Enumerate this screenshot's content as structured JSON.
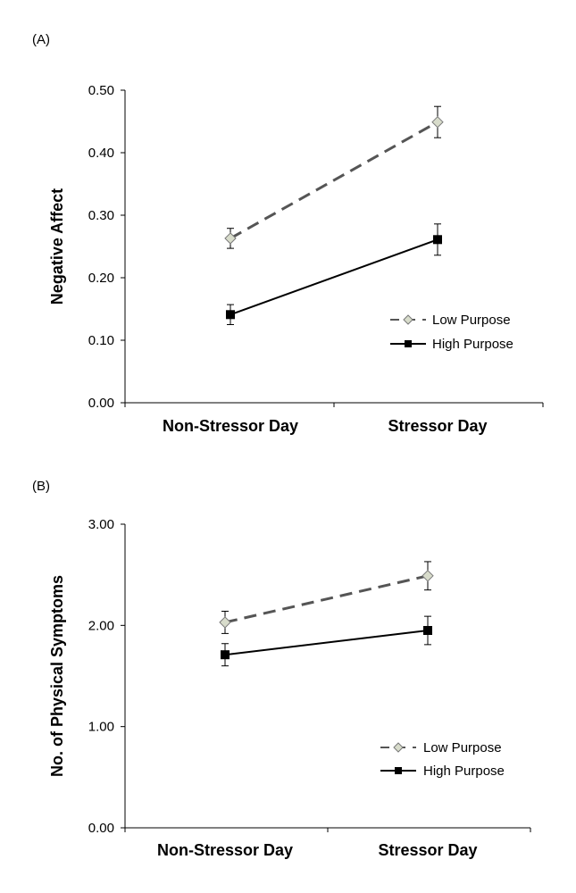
{
  "colors": {
    "low_purpose_line": "#555555",
    "low_purpose_marker_fill": "#d8dccb",
    "low_purpose_marker_stroke": "#777777",
    "high_purpose_line": "#000000",
    "axis": "#000000"
  },
  "chart_data": [
    {
      "panel_label": "(A)",
      "type": "line",
      "categories": [
        "Non-Stressor Day",
        "Stressor Day"
      ],
      "ylabel": "Negative Affect",
      "xlabel": "",
      "ylim": [
        0,
        0.5
      ],
      "yticks": [
        "0.00",
        "0.10",
        "0.20",
        "0.30",
        "0.40",
        "0.50"
      ],
      "ytick_values": [
        0,
        0.1,
        0.2,
        0.3,
        0.4,
        0.5
      ],
      "grid": false,
      "legend_position": "bottom-right",
      "series": [
        {
          "name": "Low Purpose",
          "values": [
            0.263,
            0.449
          ],
          "errors": [
            0.016,
            0.025
          ],
          "marker": "diamond",
          "line": "dashed"
        },
        {
          "name": "High Purpose",
          "values": [
            0.141,
            0.261
          ],
          "errors": [
            0.016,
            0.025
          ],
          "marker": "square",
          "line": "solid"
        }
      ]
    },
    {
      "panel_label": "(B)",
      "type": "line",
      "categories": [
        "Non-Stressor Day",
        "Stressor Day"
      ],
      "ylabel": "No. of Physical Symptoms",
      "xlabel": "",
      "ylim": [
        0,
        3
      ],
      "yticks": [
        "0.00",
        "1.00",
        "2.00",
        "3.00"
      ],
      "ytick_values": [
        0,
        1,
        2,
        3
      ],
      "grid": false,
      "legend_position": "bottom-right",
      "series": [
        {
          "name": "Low Purpose",
          "values": [
            2.03,
            2.49
          ],
          "errors": [
            0.11,
            0.14
          ],
          "marker": "diamond",
          "line": "dashed"
        },
        {
          "name": "High Purpose",
          "values": [
            1.71,
            1.95
          ],
          "errors": [
            0.11,
            0.14
          ],
          "marker": "square",
          "line": "solid"
        }
      ]
    }
  ]
}
